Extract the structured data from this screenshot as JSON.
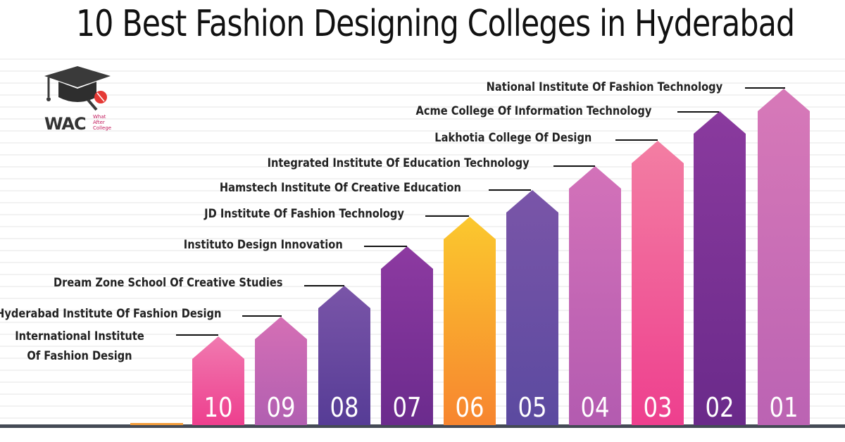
{
  "title": "10 Best Fashion Designing Colleges in Hyderabad",
  "logo": {
    "brand": "WAC",
    "tagline_lines": [
      "What",
      "After",
      "College"
    ]
  },
  "colleges": [
    {
      "rank": "10",
      "name": "International Institute Of Fashion Design",
      "color_top": "#f07ab0",
      "color_bottom": "#ee3f8e"
    },
    {
      "rank": "09",
      "name": "Hyderabad Institute Of Fashion Design",
      "color_top": "#d56fb5",
      "color_bottom": "#b15fb1"
    },
    {
      "rank": "08",
      "name": "Dream Zone School Of Creative Studies",
      "color_top": "#7a55a8",
      "color_bottom": "#563c96"
    },
    {
      "rank": "07",
      "name": "Instituto Design Innovation",
      "color_top": "#8d3aa1",
      "color_bottom": "#6b2b8d"
    },
    {
      "rank": "06",
      "name": "JD Institute Of Fashion Technology",
      "color_top": "#fbc82e",
      "color_bottom": "#f7852f"
    },
    {
      "rank": "05",
      "name": "Hamstech Institute Of Creative Education",
      "color_top": "#7a55a8",
      "color_bottom": "#5b4aa0"
    },
    {
      "rank": "04",
      "name": "Integrated Institute Of Education Technology",
      "color_top": "#d372b9",
      "color_bottom": "#b35bb0"
    },
    {
      "rank": "03",
      "name": "Lakhotia College Of Design",
      "color_top": "#f37ea3",
      "color_bottom": "#ee3f8e"
    },
    {
      "rank": "02",
      "name": "Acme College Of Information Technology",
      "color_top": "#8a3a9e",
      "color_bottom": "#6a2a8a"
    },
    {
      "rank": "01",
      "name": "National Institute Of Fashion Technology",
      "color_top": "#d779b8",
      "color_bottom": "#bb63b3"
    }
  ]
}
